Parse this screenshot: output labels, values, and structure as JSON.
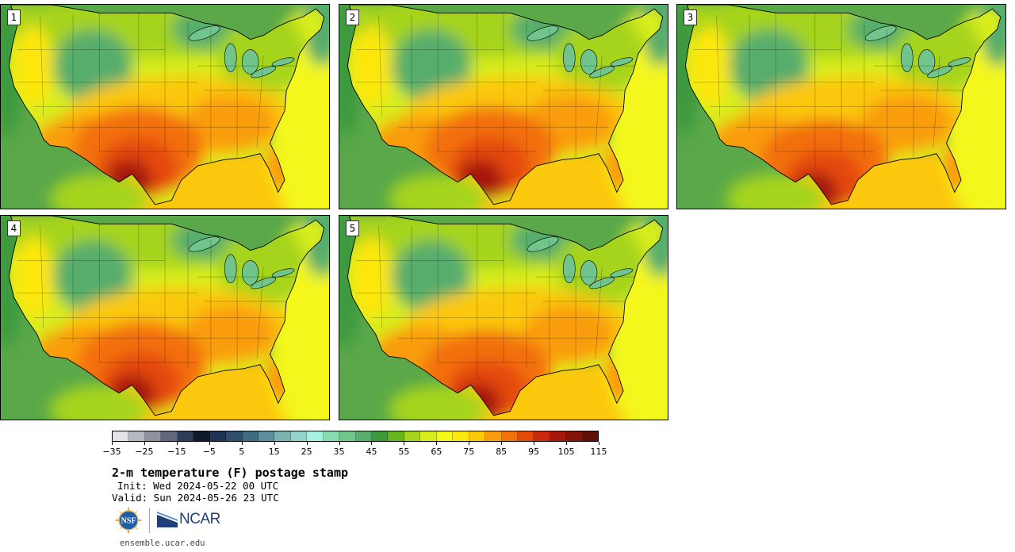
{
  "panels": [
    {
      "label": "1",
      "hot_center": [
        0.42,
        0.72
      ]
    },
    {
      "label": "2",
      "hot_center": [
        0.46,
        0.72
      ]
    },
    {
      "label": "3",
      "hot_center": [
        0.45,
        0.78
      ]
    },
    {
      "label": "4",
      "hot_center": [
        0.43,
        0.74
      ]
    },
    {
      "label": "5",
      "hot_center": [
        0.45,
        0.78
      ]
    }
  ],
  "colorbar": {
    "colors": [
      "#e2e4e8",
      "#b6b9c2",
      "#8e92a0",
      "#61677d",
      "#2d3d57",
      "#101a2c",
      "#213352",
      "#2f4e6c",
      "#3e6d82",
      "#5c8f99",
      "#7db2b3",
      "#94d2cc",
      "#a8f0de",
      "#88dcb0",
      "#70c48c",
      "#57ad6c",
      "#3c9a3c",
      "#67b51e",
      "#a6d41d",
      "#d8ed1c",
      "#f3f71a",
      "#fde70e",
      "#fbc80a",
      "#f99d0c",
      "#f3700c",
      "#e4490c",
      "#c8290c",
      "#a5180c",
      "#851408",
      "#5e1206"
    ],
    "tick_labels": [
      "−35",
      "−25",
      "−15",
      "−5",
      "5",
      "15",
      "25",
      "35",
      "45",
      "55",
      "65",
      "75",
      "85",
      "95",
      "105",
      "115"
    ]
  },
  "title": "2-m temperature (F) postage stamp",
  "init": "Init: Wed 2024-05-22 00 UTC",
  "valid": "Valid: Sun 2024-05-26 23 UTC",
  "logos": {
    "nsf": "NSF",
    "ncar": "NCAR"
  },
  "url": "ensemble.ucar.edu"
}
